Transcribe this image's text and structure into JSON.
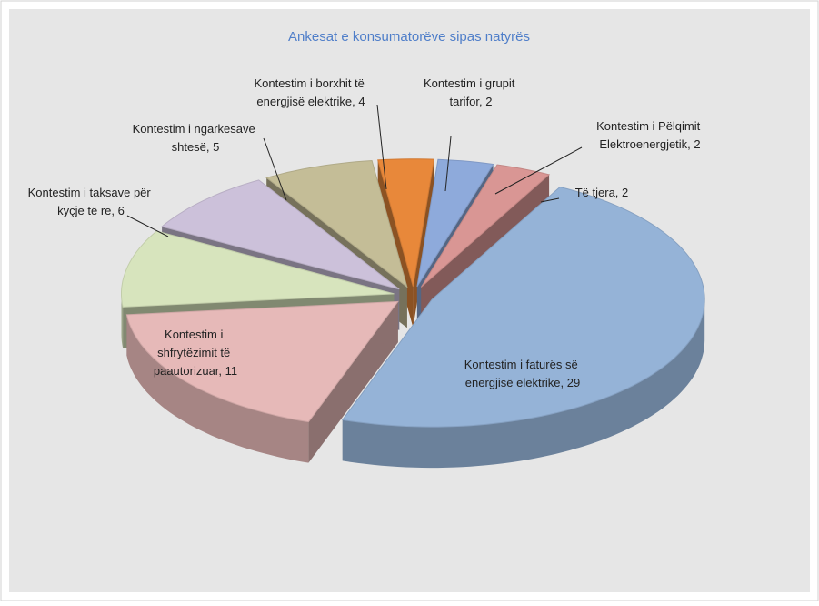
{
  "chart_data": {
    "type": "pie3d",
    "title": "Ankesat e konsumatorëve sipas natyrës",
    "value_labels": [
      "Kontestim i faturës së energjisë elektrike, 29",
      "Kontestim i shfrytëzimit të paautorizuar, 11",
      "Kontestim i taksave për kyçje të re, 6",
      "Kontestim i ngarkesave shtesë, 5",
      "Kontestim i borxhit të energjisë elektrike, 4",
      "Kontestim i grupit tarifor, 2",
      "Kontestim i Pëlqimit Elektroenergjetik, 2",
      "Të tjera, 2"
    ],
    "values": [
      29,
      11,
      6,
      5,
      4,
      2,
      2,
      2
    ],
    "colors": [
      "#95b3d7",
      "#e6b9b8",
      "#d7e4bd",
      "#ccc1da",
      "#c4bd97",
      "#e8883a",
      "#8eaadb",
      "#d99694"
    ]
  }
}
